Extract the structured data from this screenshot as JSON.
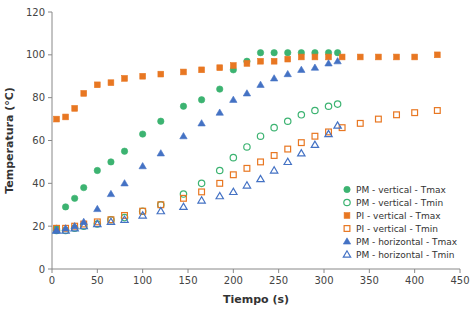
{
  "chart_data": {
    "type": "scatter",
    "xlabel": "Tiempo (s)",
    "ylabel": "Temperatura (°C)",
    "xlim": [
      0,
      450
    ],
    "ylim": [
      0,
      120
    ],
    "xticks": [
      0,
      50,
      100,
      150,
      200,
      250,
      300,
      350,
      400,
      450
    ],
    "yticks": [
      0,
      20,
      40,
      60,
      80,
      100,
      120
    ],
    "grid": false,
    "legend": "lower right",
    "series": [
      {
        "name": "PM - vertical - Tmax",
        "color": "#3cb371",
        "marker": "circle",
        "x": [
          5,
          15,
          25,
          35,
          50,
          65,
          80,
          100,
          120,
          145,
          165,
          185,
          200,
          215,
          230,
          245,
          260,
          275,
          290,
          305,
          315
        ],
        "values": [
          19,
          29,
          33,
          38,
          46,
          50,
          55,
          63,
          69,
          76,
          79,
          84,
          93,
          97,
          101,
          101,
          101,
          101,
          101,
          101,
          101
        ]
      },
      {
        "name": "PM - vertical - Tmin",
        "color": "#3cb371",
        "marker": "circle-open",
        "x": [
          5,
          15,
          25,
          35,
          50,
          65,
          80,
          100,
          120,
          145,
          165,
          185,
          200,
          215,
          230,
          245,
          260,
          275,
          290,
          305,
          315
        ],
        "values": [
          18,
          18,
          19,
          20,
          21,
          23,
          24,
          27,
          30,
          35,
          40,
          46,
          52,
          57,
          62,
          66,
          69,
          72,
          74,
          76,
          77
        ]
      },
      {
        "name": "PI - vertical - Tmax",
        "color": "#e87722",
        "marker": "square",
        "x": [
          5,
          15,
          25,
          35,
          50,
          65,
          80,
          100,
          120,
          145,
          165,
          185,
          200,
          215,
          230,
          245,
          260,
          275,
          290,
          305,
          320,
          340,
          360,
          380,
          400,
          425
        ],
        "values": [
          70,
          71,
          75,
          82,
          86,
          87,
          89,
          90,
          91,
          92,
          93,
          94,
          95,
          96,
          97,
          97,
          98,
          99,
          99,
          99,
          99,
          99,
          99,
          99,
          99,
          100
        ]
      },
      {
        "name": "PI - vertical - Tmin",
        "color": "#e87722",
        "marker": "square-open",
        "x": [
          5,
          15,
          25,
          35,
          50,
          65,
          80,
          100,
          120,
          145,
          165,
          185,
          200,
          215,
          230,
          245,
          260,
          275,
          290,
          305,
          320,
          340,
          360,
          380,
          400,
          425
        ],
        "values": [
          19,
          19,
          20,
          21,
          22,
          23,
          25,
          27,
          30,
          33,
          36,
          40,
          44,
          47,
          50,
          53,
          56,
          59,
          62,
          64,
          66,
          68,
          70,
          72,
          73,
          74
        ]
      },
      {
        "name": "PM - horizontal - Tmax",
        "color": "#4472c4",
        "marker": "triangle-up",
        "x": [
          5,
          15,
          25,
          35,
          50,
          65,
          80,
          100,
          120,
          145,
          165,
          185,
          200,
          215,
          230,
          245,
          260,
          275,
          290,
          305,
          315
        ],
        "values": [
          18,
          19,
          20,
          22,
          28,
          35,
          40,
          48,
          54,
          62,
          68,
          73,
          79,
          82,
          86,
          89,
          91,
          93,
          94,
          96,
          97
        ]
      },
      {
        "name": "PM - horizontal - Tmin",
        "color": "#4472c4",
        "marker": "triangle-up-open",
        "x": [
          5,
          15,
          25,
          35,
          50,
          65,
          80,
          100,
          120,
          145,
          165,
          185,
          200,
          215,
          230,
          245,
          260,
          275,
          290,
          305,
          315
        ],
        "values": [
          18,
          18,
          19,
          20,
          21,
          22,
          23,
          25,
          27,
          29,
          32,
          34,
          36,
          39,
          42,
          46,
          50,
          54,
          58,
          63,
          67
        ]
      }
    ]
  }
}
